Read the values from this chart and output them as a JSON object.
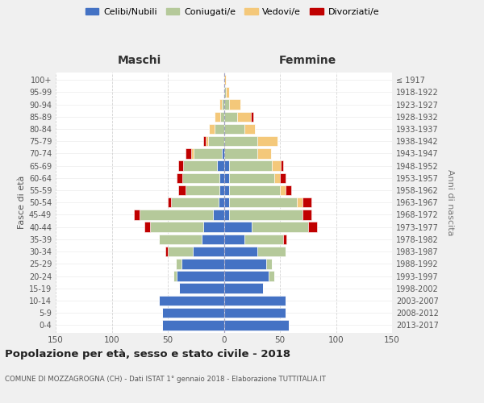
{
  "age_groups": [
    "0-4",
    "5-9",
    "10-14",
    "15-19",
    "20-24",
    "25-29",
    "30-34",
    "35-39",
    "40-44",
    "45-49",
    "50-54",
    "55-59",
    "60-64",
    "65-69",
    "70-74",
    "75-79",
    "80-84",
    "85-89",
    "90-94",
    "95-99",
    "100+"
  ],
  "birth_years": [
    "2013-2017",
    "2008-2012",
    "2003-2007",
    "1998-2002",
    "1993-1997",
    "1988-1992",
    "1983-1987",
    "1978-1982",
    "1973-1977",
    "1968-1972",
    "1963-1967",
    "1958-1962",
    "1953-1957",
    "1948-1952",
    "1943-1947",
    "1938-1942",
    "1933-1937",
    "1928-1932",
    "1923-1927",
    "1918-1922",
    "≤ 1917"
  ],
  "colors": {
    "celibi": "#4472C4",
    "coniugati": "#B5C99A",
    "vedovi": "#F4C87A",
    "divorziati": "#C00000"
  },
  "maschi": {
    "celibi": [
      55,
      55,
      58,
      40,
      42,
      38,
      28,
      20,
      18,
      10,
      5,
      4,
      4,
      6,
      2,
      0,
      0,
      0,
      0,
      0,
      0
    ],
    "coniugati": [
      0,
      0,
      0,
      0,
      3,
      5,
      22,
      38,
      48,
      65,
      42,
      30,
      33,
      30,
      25,
      14,
      8,
      3,
      2,
      0,
      0
    ],
    "vedovi": [
      0,
      0,
      0,
      0,
      0,
      0,
      0,
      0,
      0,
      0,
      0,
      0,
      0,
      0,
      2,
      2,
      5,
      5,
      2,
      0,
      0
    ],
    "divorziati": [
      0,
      0,
      0,
      0,
      0,
      0,
      2,
      0,
      5,
      5,
      3,
      7,
      5,
      5,
      5,
      2,
      0,
      0,
      0,
      0,
      0
    ]
  },
  "femmine": {
    "celibi": [
      58,
      55,
      55,
      35,
      40,
      38,
      30,
      18,
      25,
      5,
      5,
      5,
      5,
      5,
      0,
      0,
      0,
      0,
      0,
      0,
      0
    ],
    "coniugati": [
      0,
      0,
      0,
      0,
      5,
      5,
      25,
      35,
      50,
      65,
      60,
      45,
      40,
      38,
      30,
      30,
      18,
      12,
      5,
      2,
      0
    ],
    "vedovi": [
      0,
      0,
      0,
      0,
      0,
      0,
      0,
      0,
      0,
      0,
      5,
      5,
      5,
      8,
      12,
      18,
      10,
      12,
      10,
      3,
      2
    ],
    "divorziati": [
      0,
      0,
      0,
      0,
      0,
      0,
      0,
      3,
      8,
      8,
      8,
      5,
      5,
      2,
      0,
      0,
      0,
      2,
      0,
      0,
      0
    ]
  },
  "title": "Popolazione per età, sesso e stato civile - 2018",
  "subtitle": "COMUNE DI MOZZAGROGNA (CH) - Dati ISTAT 1° gennaio 2018 - Elaborazione TUTTITALIA.IT",
  "ylabel": "Fasce di età",
  "ylabel_right": "Anni di nascita",
  "xlabel_left": "Maschi",
  "xlabel_right": "Femmine",
  "xlim": 150,
  "bg_color": "#f0f0f0",
  "plot_bg_color": "#ffffff",
  "grid_color": "#cccccc"
}
